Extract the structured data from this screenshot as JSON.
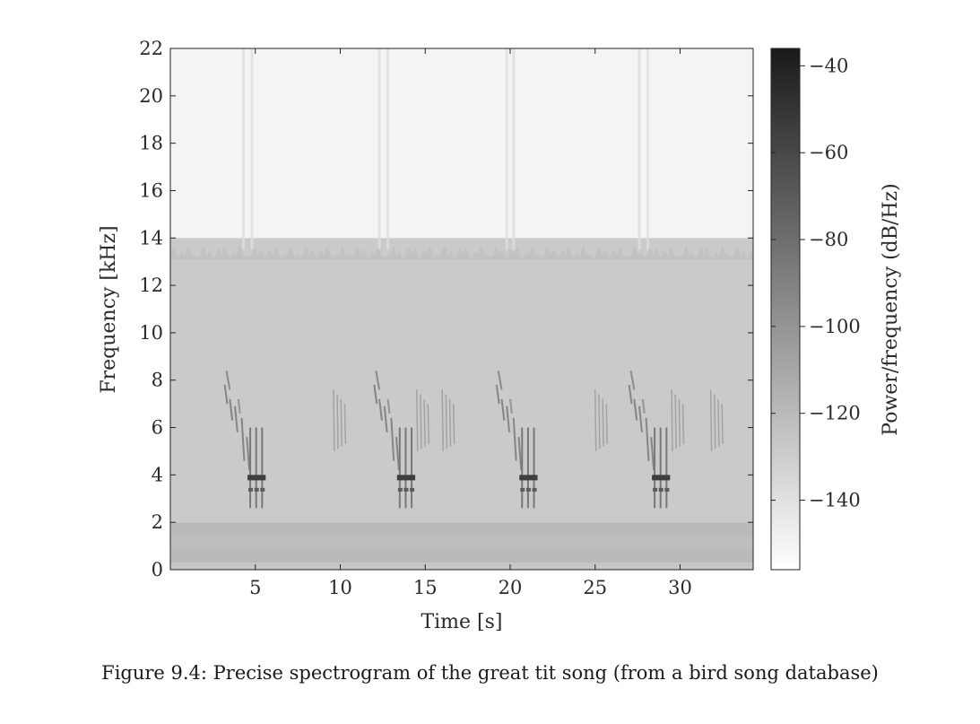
{
  "chart_data": {
    "type": "heatmap",
    "title": "",
    "xlabel": "Time [s]",
    "ylabel": "Frequency [kHz]",
    "colorbar_label": "Power/frequency (dB/Hz)",
    "xlim": [
      0,
      34.3
    ],
    "ylim": [
      0,
      22
    ],
    "clim": [
      -156,
      -36
    ],
    "x_ticks": [
      5,
      10,
      15,
      20,
      25,
      30
    ],
    "y_ticks": [
      0,
      2,
      4,
      6,
      8,
      10,
      12,
      14,
      16,
      18,
      20,
      22
    ],
    "c_ticks": [
      -40,
      -60,
      -80,
      -100,
      -120,
      -140
    ],
    "colormap": "gray_r",
    "colors": {
      "low": "#ffffff",
      "high": "#1a1a1a"
    },
    "background_level_dB": {
      "above_14kHz": -150,
      "between_2_and_14kHz": -128,
      "below_2kHz": -120
    },
    "song_phrases_start_s": [
      3.2,
      12.0,
      19.2,
      27.0
    ],
    "broadband_clicks_s": [
      4.3,
      4.8,
      12.3,
      12.8,
      19.8,
      20.2,
      27.6,
      28.1
    ],
    "grid": false
  },
  "caption": "Figure 9.4: Precise spectrogram of the great tit song (from a bird song database)"
}
